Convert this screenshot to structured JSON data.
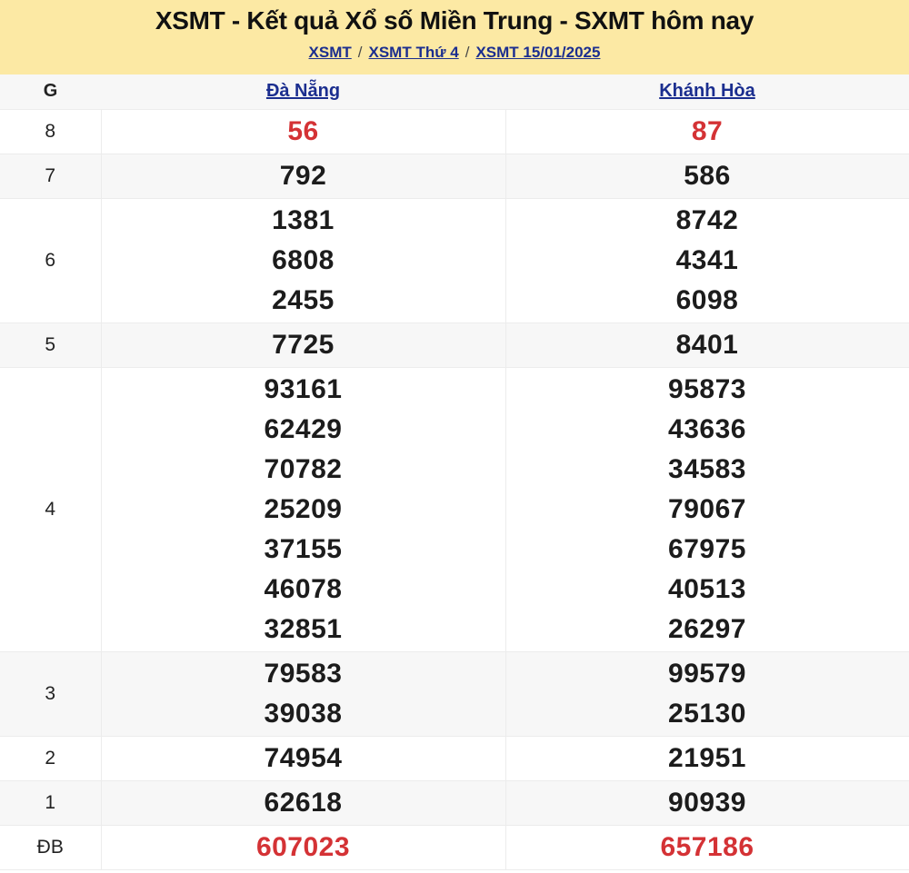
{
  "banner": {
    "title": "XSMT - Kết quả Xổ số Miền Trung - SXMT hôm nay",
    "separator": "/",
    "breadcrumb": [
      {
        "label": "XSMT"
      },
      {
        "label": "XSMT Thứ 4"
      },
      {
        "label": "XSMT 15/01/2025"
      }
    ]
  },
  "table": {
    "header": {
      "tier_col": "G",
      "province1": "Đà Nẵng",
      "province2": "Khánh Hòa"
    },
    "rows": [
      {
        "g": "8",
        "danang": [
          "56"
        ],
        "khanhhoa": [
          "87"
        ],
        "shade": false,
        "highlight": true
      },
      {
        "g": "7",
        "danang": [
          "792"
        ],
        "khanhhoa": [
          "586"
        ],
        "shade": true,
        "highlight": false
      },
      {
        "g": "6",
        "danang": [
          "1381",
          "6808",
          "2455"
        ],
        "khanhhoa": [
          "8742",
          "4341",
          "6098"
        ],
        "shade": false,
        "highlight": false
      },
      {
        "g": "5",
        "danang": [
          "7725"
        ],
        "khanhhoa": [
          "8401"
        ],
        "shade": true,
        "highlight": false
      },
      {
        "g": "4",
        "danang": [
          "93161",
          "62429",
          "70782",
          "25209",
          "37155",
          "46078",
          "32851"
        ],
        "khanhhoa": [
          "95873",
          "43636",
          "34583",
          "79067",
          "67975",
          "40513",
          "26297"
        ],
        "shade": false,
        "highlight": false
      },
      {
        "g": "3",
        "danang": [
          "79583",
          "39038"
        ],
        "khanhhoa": [
          "99579",
          "25130"
        ],
        "shade": true,
        "highlight": false
      },
      {
        "g": "2",
        "danang": [
          "74954"
        ],
        "khanhhoa": [
          "21951"
        ],
        "shade": false,
        "highlight": false
      },
      {
        "g": "1",
        "danang": [
          "62618"
        ],
        "khanhhoa": [
          "90939"
        ],
        "shade": true,
        "highlight": false
      },
      {
        "g": "ĐB",
        "danang": [
          "607023"
        ],
        "khanhhoa": [
          "657186"
        ],
        "shade": false,
        "highlight": true
      }
    ]
  },
  "colors": {
    "banner_background": "#FCE9A4",
    "row_shade": "#F7F7F7",
    "border": "#ECECEC",
    "link_navy": "#1B2E8F",
    "highlight_red": "#D43235",
    "text": "#1C1C1C"
  }
}
